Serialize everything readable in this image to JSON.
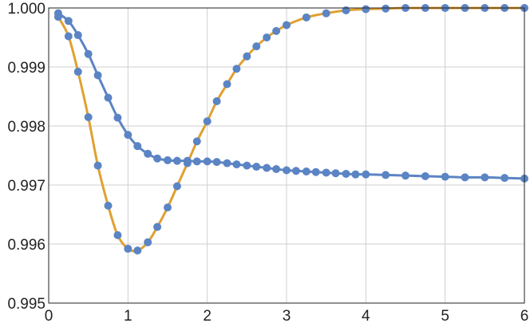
{
  "chart_data": {
    "type": "line",
    "title": "",
    "xlabel": "",
    "ylabel": "",
    "xlim": [
      0,
      6
    ],
    "ylim": [
      0.995,
      1.0
    ],
    "grid": true,
    "xticks": [
      "0",
      "1",
      "2",
      "3",
      "4",
      "5",
      "6"
    ],
    "yticks": [
      "0.995",
      "0.996",
      "0.997",
      "0.998",
      "0.999",
      "1.000"
    ],
    "series": [
      {
        "color": "#E0A030",
        "marker_color": "#5B84C4",
        "x": [
          0.12,
          0.25,
          0.37,
          0.5,
          0.62,
          0.75,
          0.87,
          1.0,
          1.12,
          1.25,
          1.37,
          1.5,
          1.62,
          1.75,
          1.87,
          2.0,
          2.12,
          2.25,
          2.37,
          2.5,
          2.62,
          2.75,
          2.87,
          3.0,
          3.25,
          3.5,
          3.75,
          4.0,
          4.25,
          4.5,
          4.75,
          5.0,
          5.25,
          5.5,
          5.75,
          6.0
        ],
        "y": [
          0.99985,
          0.99952,
          0.99892,
          0.99815,
          0.99733,
          0.99665,
          0.99615,
          0.99592,
          0.99589,
          0.99603,
          0.99629,
          0.99662,
          0.99698,
          0.99737,
          0.99774,
          0.99808,
          0.99842,
          0.99871,
          0.99897,
          0.99918,
          0.99935,
          0.9995,
          0.99961,
          0.99971,
          0.99984,
          0.99991,
          0.99996,
          0.99998,
          0.99999,
          1.0,
          1.0,
          1.0,
          1.0,
          1.0,
          1.0,
          1.0
        ]
      },
      {
        "color": "#5B84C4",
        "marker_color": "#5B84C4",
        "x": [
          0.12,
          0.25,
          0.37,
          0.5,
          0.62,
          0.75,
          0.87,
          1.0,
          1.12,
          1.25,
          1.37,
          1.5,
          1.62,
          1.75,
          1.87,
          2.0,
          2.12,
          2.25,
          2.37,
          2.5,
          2.62,
          2.75,
          2.87,
          3.0,
          3.12,
          3.25,
          3.37,
          3.5,
          3.62,
          3.75,
          3.87,
          4.0,
          4.25,
          4.5,
          4.75,
          5.0,
          5.25,
          5.5,
          5.75,
          6.0
        ],
        "y": [
          0.99991,
          0.99978,
          0.99954,
          0.99922,
          0.99886,
          0.99848,
          0.99814,
          0.99785,
          0.99766,
          0.99753,
          0.99745,
          0.99742,
          0.99741,
          0.99741,
          0.9974,
          0.9974,
          0.99739,
          0.99737,
          0.99735,
          0.99733,
          0.99731,
          0.99729,
          0.99727,
          0.99725,
          0.99724,
          0.99723,
          0.99722,
          0.99721,
          0.9972,
          0.99719,
          0.99718,
          0.99718,
          0.99717,
          0.99716,
          0.99715,
          0.99714,
          0.99713,
          0.99713,
          0.99712,
          0.99711
        ]
      }
    ]
  }
}
